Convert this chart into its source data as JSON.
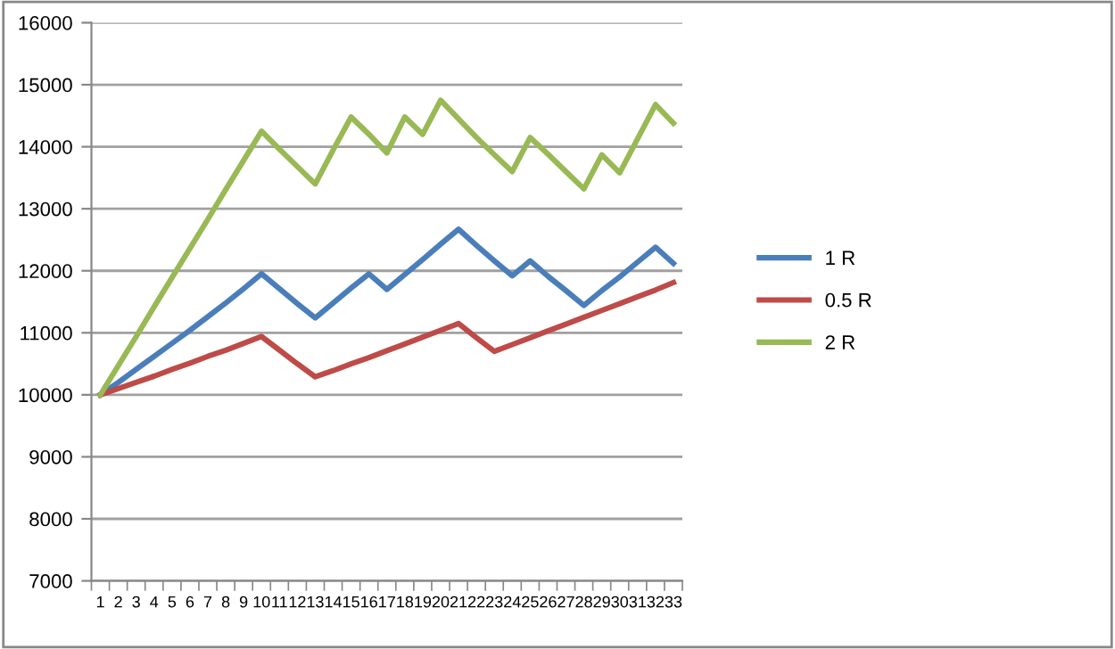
{
  "chart_data": {
    "type": "line",
    "categories": [
      "1",
      "2",
      "3",
      "4",
      "5",
      "6",
      "7",
      "8",
      "9",
      "10",
      "11",
      "12",
      "13",
      "14",
      "15",
      "16",
      "17",
      "18",
      "19",
      "20",
      "21",
      "22",
      "23",
      "24",
      "25",
      "26",
      "27",
      "28",
      "29",
      "30",
      "31",
      "32",
      "33"
    ],
    "series": [
      {
        "name": "1 R",
        "color": "#4a7ebb",
        "values": [
          10000,
          10200,
          10410,
          10620,
          10830,
          11040,
          11260,
          11480,
          11710,
          11950,
          11710,
          11470,
          11240,
          11480,
          11720,
          11950,
          11700,
          11940,
          12180,
          12430,
          12670,
          12410,
          12160,
          11920,
          12160,
          11910,
          11680,
          11440,
          11680,
          11900,
          12140,
          12380,
          12120
        ]
      },
      {
        "name": "0.5 R",
        "color": "#be4b48",
        "values": [
          10000,
          10100,
          10200,
          10300,
          10410,
          10510,
          10620,
          10720,
          10830,
          10940,
          10720,
          10500,
          10290,
          10390,
          10500,
          10600,
          10710,
          10820,
          10930,
          11040,
          11150,
          10920,
          10700,
          10810,
          10920,
          11030,
          11140,
          11250,
          11360,
          11470,
          11580,
          11690,
          11810
        ]
      },
      {
        "name": "2 R",
        "color": "#98b954",
        "values": [
          10000,
          10470,
          10940,
          11420,
          11890,
          12360,
          12830,
          13310,
          13780,
          14250,
          13960,
          13680,
          13400,
          13950,
          14480,
          14200,
          13900,
          14480,
          14200,
          14750,
          14450,
          14150,
          13870,
          13600,
          14150,
          13880,
          13600,
          13320,
          13870,
          13580,
          14130,
          14680,
          14380
        ]
      }
    ],
    "ylim": [
      7000,
      16000
    ],
    "yticks": [
      7000,
      8000,
      9000,
      10000,
      11000,
      12000,
      13000,
      14000,
      15000,
      16000
    ],
    "grid": "y",
    "legend": "right",
    "marker": "none",
    "line_style": "solid"
  }
}
